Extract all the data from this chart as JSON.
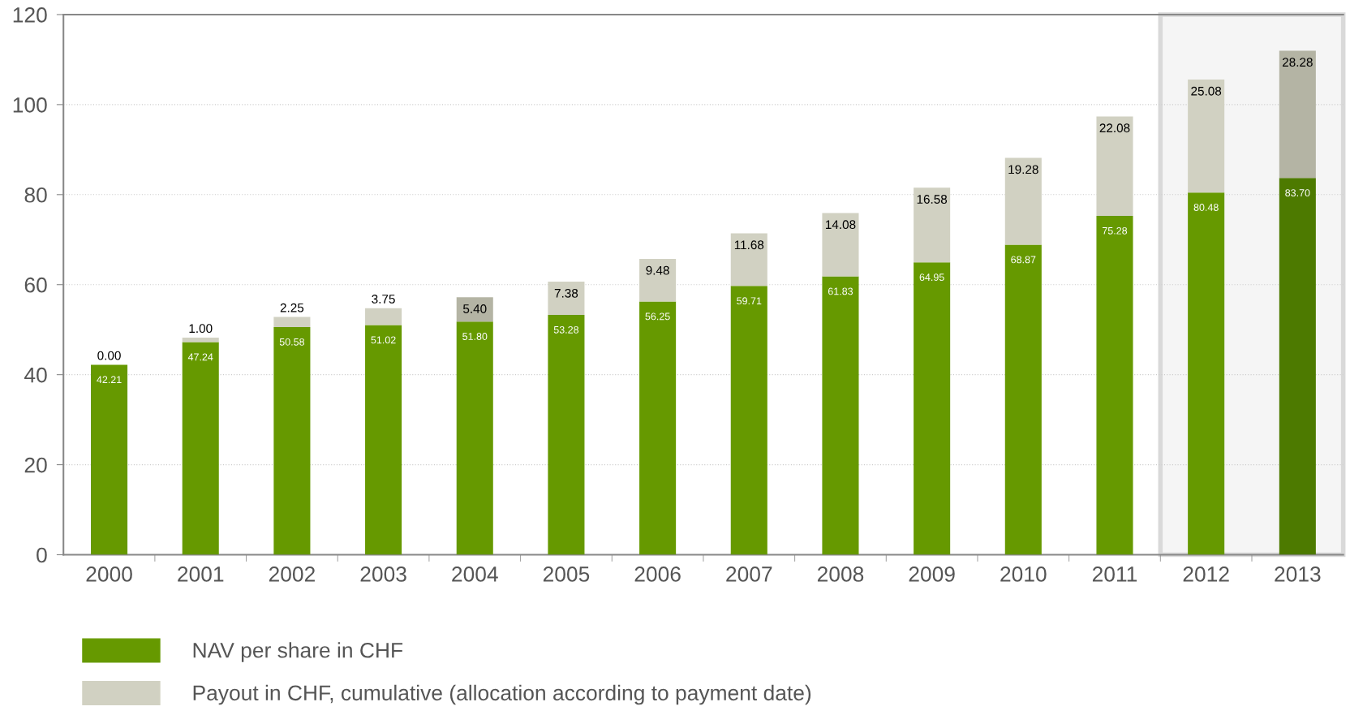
{
  "chart_data": {
    "type": "bar",
    "stacked": true,
    "categories": [
      "2000",
      "2001",
      "2002",
      "2003",
      "2004",
      "2005",
      "2006",
      "2007",
      "2008",
      "2009",
      "2010",
      "2011",
      "2012",
      "2013"
    ],
    "series": [
      {
        "name": "NAV per share in CHF",
        "color": "#669900",
        "colors": [
          "#669900",
          "#669900",
          "#669900",
          "#669900",
          "#669900",
          "#669900",
          "#669900",
          "#669900",
          "#669900",
          "#669900",
          "#669900",
          "#669900",
          "#669900",
          "#4d7a00"
        ],
        "values": [
          42.21,
          47.24,
          50.58,
          51.02,
          51.8,
          53.28,
          56.25,
          59.71,
          61.83,
          64.95,
          68.87,
          75.28,
          80.48,
          83.7
        ],
        "value_labels": [
          "42.21",
          "47.24",
          "50.58",
          "51.02",
          "51.80",
          "53.28",
          "56.25",
          "59.71",
          "61.83",
          "64.95",
          "68.87",
          "75.28",
          "80.48",
          "83.70"
        ]
      },
      {
        "name": "Payout in CHF, cumulative (allocation according to payment date)",
        "color": "#d1d1c2",
        "colors": [
          "#d1d1c2",
          "#d1d1c2",
          "#d1d1c2",
          "#d1d1c2",
          "#b4b4a4",
          "#d1d1c2",
          "#d1d1c2",
          "#d1d1c2",
          "#d1d1c2",
          "#d1d1c2",
          "#d1d1c2",
          "#d1d1c2",
          "#d1d1c2",
          "#b4b4a4"
        ],
        "values": [
          0.0,
          1.0,
          2.25,
          3.75,
          5.4,
          7.38,
          9.48,
          11.68,
          14.08,
          16.58,
          19.28,
          22.08,
          25.08,
          28.28
        ],
        "value_labels": [
          "0.00",
          "1.00",
          "2.25",
          "3.75",
          "5.40",
          "7.38",
          "9.48",
          "11.68",
          "14.08",
          "16.58",
          "19.28",
          "22.08",
          "25.08",
          "28.28"
        ]
      }
    ],
    "ylim": [
      0,
      120
    ],
    "yticks": [
      0,
      20,
      40,
      60,
      80,
      100,
      120
    ],
    "grid": "y",
    "legend": "bottom left",
    "bands": [
      {
        "axis": "x",
        "from": "2012",
        "to": "2013",
        "color": "#d9d9d9"
      }
    ]
  }
}
